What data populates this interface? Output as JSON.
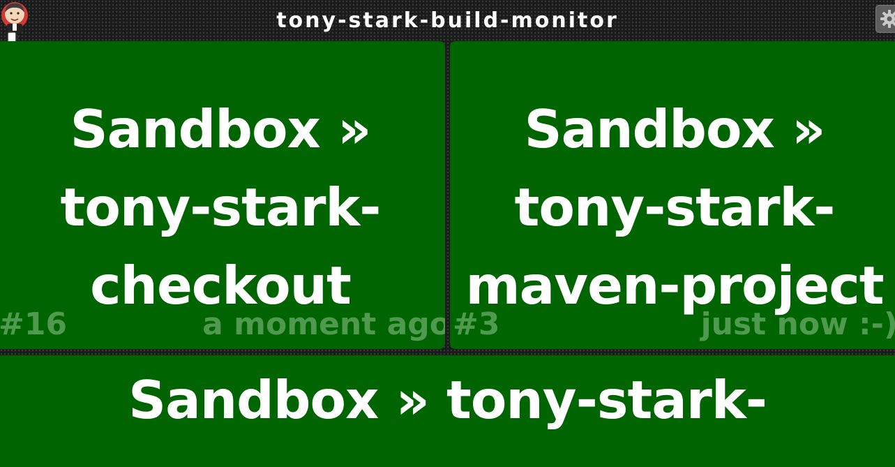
{
  "header": {
    "title": "tony-stark-build-monitor",
    "logo_icon": "jenkins-butler-logo",
    "settings_icon": "gear-icon"
  },
  "colors": {
    "success": "#006400",
    "background": "#1b1b1b",
    "muted_text": "#4f9a4f",
    "text": "#ffffff"
  },
  "tiles": [
    {
      "line1": "Sandbox »",
      "line2": "tony-stark-",
      "line3": "checkout",
      "build_number": "#16",
      "time_ago": "a moment ago",
      "status": "success"
    },
    {
      "line1": "Sandbox »",
      "line2": "tony-stark-",
      "line3": "maven-project",
      "build_number": "#3",
      "time_ago": "just now :-)",
      "status": "success"
    },
    {
      "line1": "Sandbox » tony-stark-",
      "status": "success"
    }
  ]
}
